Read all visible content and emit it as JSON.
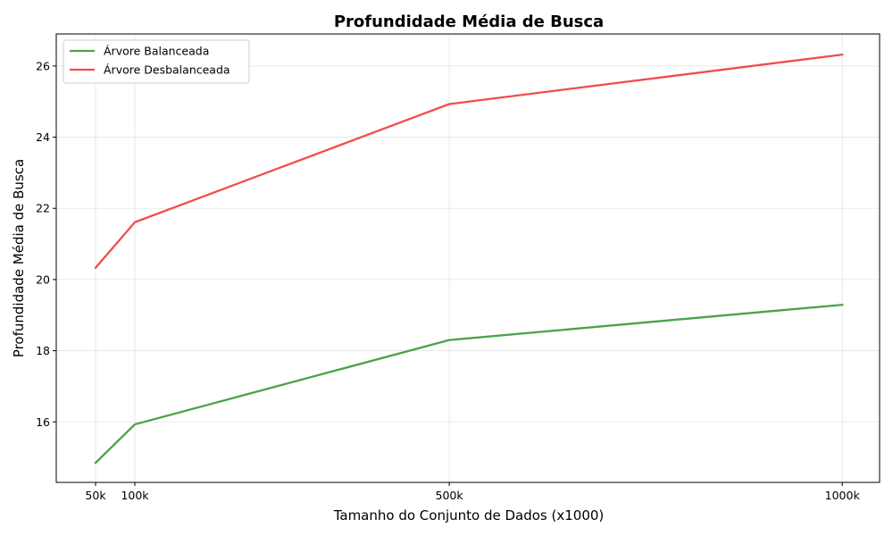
{
  "chart_data": {
    "type": "line",
    "title": "Profundidade Média de Busca",
    "xlabel": "Tamanho do Conjunto de Dados (x1000)",
    "ylabel": "Profundidade Média de Busca",
    "x": [
      50,
      100,
      500,
      1000
    ],
    "x_tick_labels": [
      "50k",
      "100k",
      "500k",
      "1000k"
    ],
    "y_ticks": [
      16,
      18,
      20,
      22,
      24,
      26
    ],
    "ylim": [
      14.3,
      26.9
    ],
    "xlim": [
      0,
      1047.5
    ],
    "grid": true,
    "legend_position": "upper-left",
    "series": [
      {
        "name": "Árvore Balanceada",
        "color": "#4ba24b",
        "values": [
          14.85,
          15.93,
          18.3,
          19.29
        ]
      },
      {
        "name": "Árvore Desbalanceada",
        "color": "#f04d4d",
        "values": [
          20.33,
          21.61,
          24.93,
          26.32
        ]
      }
    ]
  }
}
